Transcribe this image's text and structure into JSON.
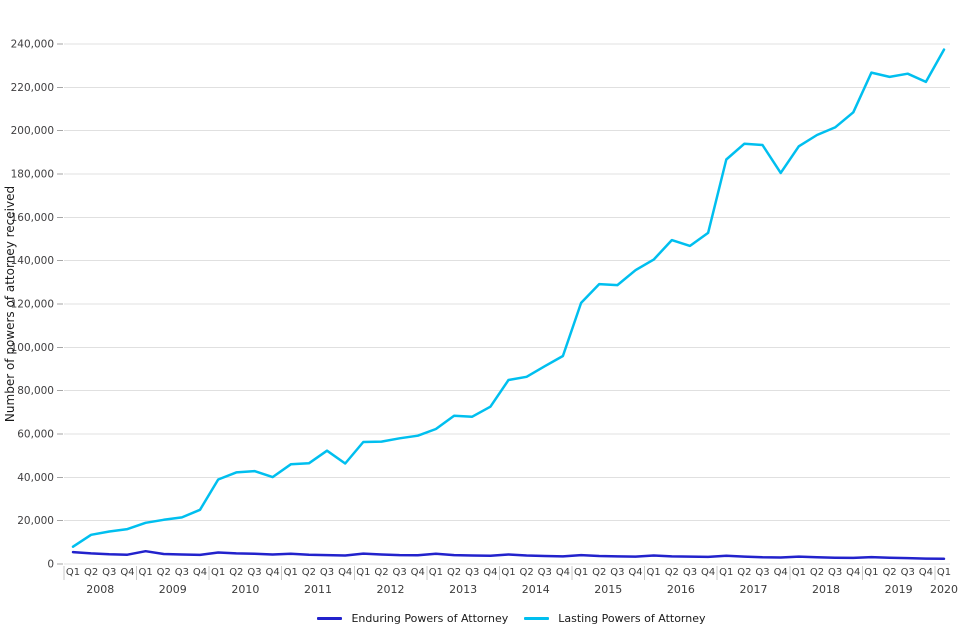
{
  "chart_data": {
    "type": "line",
    "title": "",
    "ylabel": "Number of powers of attorney received",
    "xlabel": "",
    "ylim": [
      0,
      240000
    ],
    "ytick_step": 20000,
    "grid": "horizontal",
    "legend_position": "bottom-center",
    "yticks": [
      {
        "value": 0,
        "label": "0"
      },
      {
        "value": 20000,
        "label": "20,000"
      },
      {
        "value": 40000,
        "label": "40,000"
      },
      {
        "value": 60000,
        "label": "60,000"
      },
      {
        "value": 80000,
        "label": "80,000"
      },
      {
        "value": 100000,
        "label": "100,000"
      },
      {
        "value": 120000,
        "label": "120,000"
      },
      {
        "value": 140000,
        "label": "140,000"
      },
      {
        "value": 160000,
        "label": "160,000"
      },
      {
        "value": 180000,
        "label": "180,000"
      },
      {
        "value": 200000,
        "label": "200,000"
      },
      {
        "value": 220000,
        "label": "220,000"
      },
      {
        "value": 240000,
        "label": "240,000"
      }
    ],
    "x_labels": [
      "Q1",
      "Q2",
      "Q3",
      "Q4",
      "Q1",
      "Q2",
      "Q3",
      "Q4",
      "Q1",
      "Q2",
      "Q3",
      "Q4",
      "Q1",
      "Q2",
      "Q3",
      "Q4",
      "Q1",
      "Q2",
      "Q3",
      "Q4",
      "Q1",
      "Q2",
      "Q3",
      "Q4",
      "Q1",
      "Q2",
      "Q3",
      "Q4",
      "Q1",
      "Q2",
      "Q3",
      "Q4",
      "Q1",
      "Q2",
      "Q3",
      "Q4",
      "Q1",
      "Q2",
      "Q3",
      "Q4",
      "Q1",
      "Q2",
      "Q3",
      "Q4",
      "Q1",
      "Q2",
      "Q3",
      "Q4",
      "Q1"
    ],
    "years": [
      {
        "label": "2008",
        "quarters": 4
      },
      {
        "label": "2009",
        "quarters": 4
      },
      {
        "label": "2010",
        "quarters": 4
      },
      {
        "label": "2011",
        "quarters": 4
      },
      {
        "label": "2012",
        "quarters": 4
      },
      {
        "label": "2013",
        "quarters": 4
      },
      {
        "label": "2014",
        "quarters": 4
      },
      {
        "label": "2015",
        "quarters": 4
      },
      {
        "label": "2016",
        "quarters": 4
      },
      {
        "label": "2017",
        "quarters": 4
      },
      {
        "label": "2018",
        "quarters": 4
      },
      {
        "label": "2019",
        "quarters": 4
      },
      {
        "label": "2020",
        "quarters": 1
      }
    ],
    "series": [
      {
        "name": "Enduring Powers of Attorney",
        "color": "#2222cc",
        "values": [
          5500,
          4900,
          4500,
          4300,
          5900,
          4600,
          4400,
          4200,
          5300,
          4900,
          4700,
          4400,
          4700,
          4300,
          4100,
          3900,
          4800,
          4400,
          4100,
          4000,
          4700,
          4100,
          3900,
          3800,
          4400,
          3900,
          3700,
          3500,
          4100,
          3700,
          3500,
          3400,
          3900,
          3500,
          3400,
          3300,
          3800,
          3400,
          3100,
          3000,
          3400,
          3100,
          2900,
          2800,
          3200,
          2900,
          2700,
          2500,
          2400
        ]
      },
      {
        "name": "Lasting Powers of Attorney",
        "color": "#00bfef",
        "values": [
          8000,
          13500,
          15000,
          16100,
          19000,
          20400,
          21500,
          25000,
          39000,
          42300,
          42900,
          40100,
          46000,
          46500,
          52300,
          46400,
          56300,
          56500,
          58000,
          59200,
          62300,
          68400,
          68000,
          72600,
          84900,
          86400,
          91300,
          96000,
          120500,
          129200,
          128700,
          135600,
          140500,
          149500,
          146800,
          152800,
          186700,
          194000,
          193400,
          180500,
          192800,
          198000,
          201500,
          208500,
          226800,
          224800,
          226300,
          222500,
          237400
        ]
      }
    ]
  }
}
